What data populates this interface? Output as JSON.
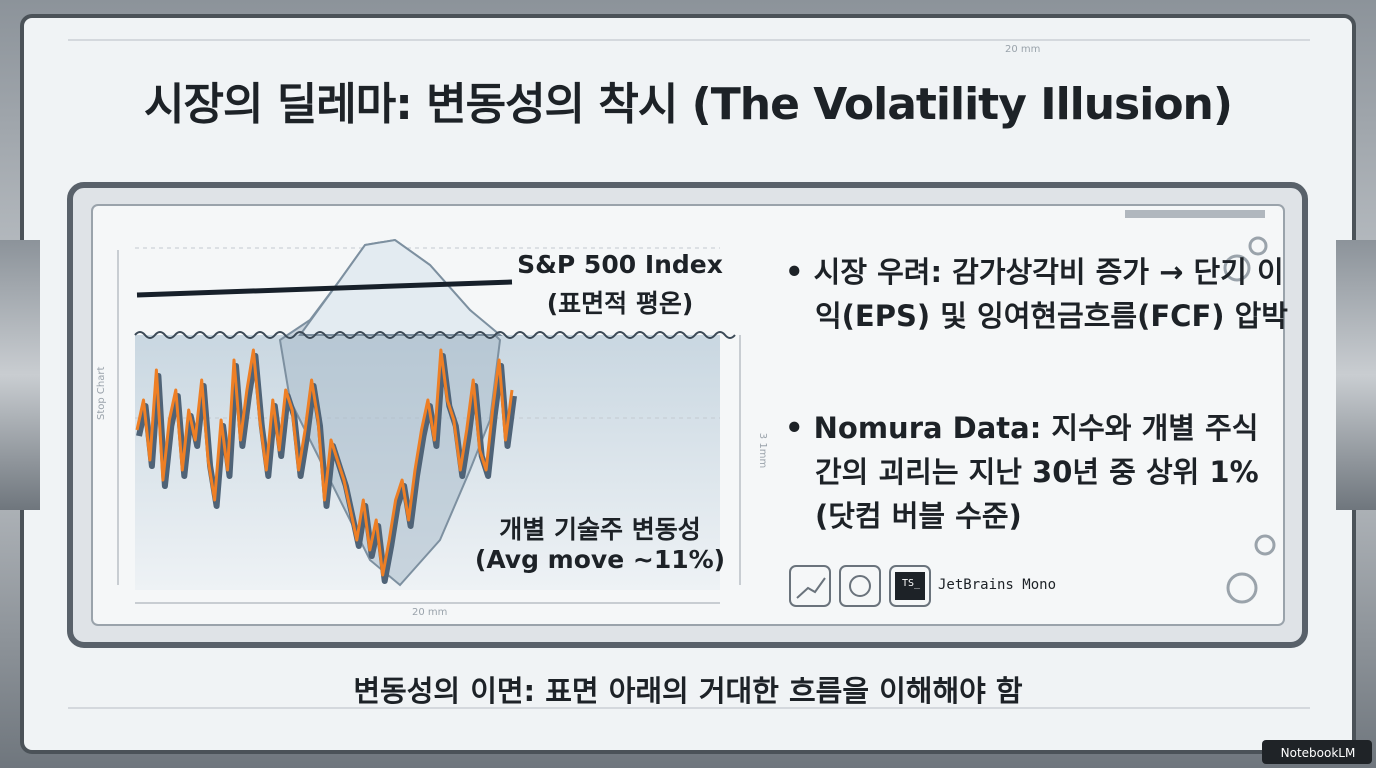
{
  "header": {
    "title": "시장의 딜레마: 변동성의 착시 (The Volatility Illusion)",
    "dimension_note": "20 mm"
  },
  "illustration": {
    "index_label": "S&P 500 Index",
    "index_sublabel": "(표면적 평온)",
    "stock_label": "개별 기술주 변동성",
    "stock_sublabel": "(Avg move ~11%)",
    "side_note": "Stop Chart",
    "height_note": "3 1mm",
    "width_note": "20 mm"
  },
  "bullets": [
    "시장 우려: 감가상각비 증가 → 단기 이익(EPS) 및 잉여현금흐름(FCF) 압박",
    "Nomura Data: 지수와 개별 주식 간의 괴리는 지난 30년 중 상위 1% (닷컴 버블 수준)"
  ],
  "toolbar": {
    "icon_text": "TS_",
    "font_name": "JetBrains Mono"
  },
  "footer": {
    "caption": "변동성의 이면: 표면 아래의 거대한 흐름을 이해해야 함"
  },
  "watermark": "NotebookLM"
}
